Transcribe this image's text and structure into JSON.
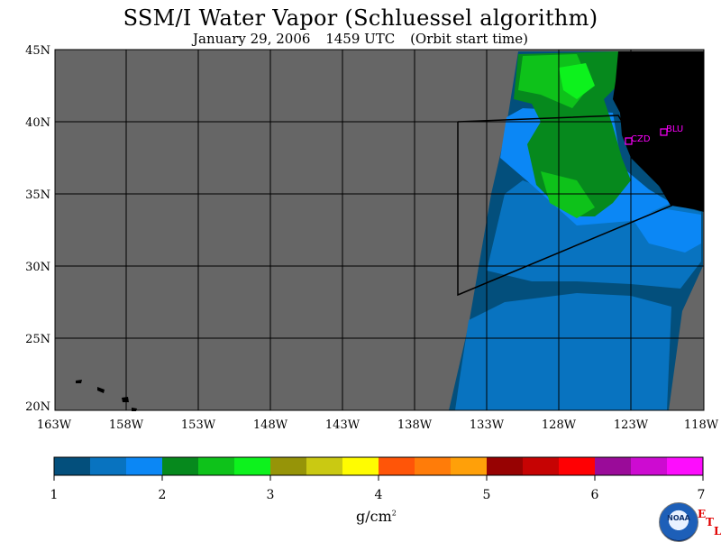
{
  "header": {
    "title": "SSM/I Water Vapor (Schluessel algorithm)",
    "date": "January 29, 2006",
    "time": "1459 UTC",
    "orbit_note": "(Orbit start time)"
  },
  "map": {
    "lat_labels": [
      "45N",
      "40N",
      "35N",
      "30N",
      "25N",
      "20N"
    ],
    "lon_labels": [
      "163W",
      "158W",
      "153W",
      "148W",
      "143W",
      "138W",
      "133W",
      "128W",
      "123W",
      "118W"
    ],
    "stations": [
      {
        "code": "CZD"
      },
      {
        "code": "BLU"
      }
    ],
    "no_data_color": "#666666",
    "land_color": "#000000"
  },
  "colorbar": {
    "colors": [
      "#034f7c",
      "#0873c0",
      "#0b87f5",
      "#06891d",
      "#0ec21a",
      "#0df21d",
      "#969408",
      "#cac912",
      "#fffc01",
      "#ff5508",
      "#ff7c09",
      "#ffa009",
      "#970202",
      "#c60303",
      "#ff0003",
      "#9a0b99",
      "#cd0bd1",
      "#fd0dfd"
    ],
    "tick_labels": [
      "1",
      "2",
      "3",
      "4",
      "5",
      "6",
      "7"
    ],
    "unit_base": "g/cm",
    "unit_exp": "2"
  },
  "logo": {
    "text": "NOAA",
    "etl_letters": [
      "E",
      "T",
      "L"
    ]
  }
}
